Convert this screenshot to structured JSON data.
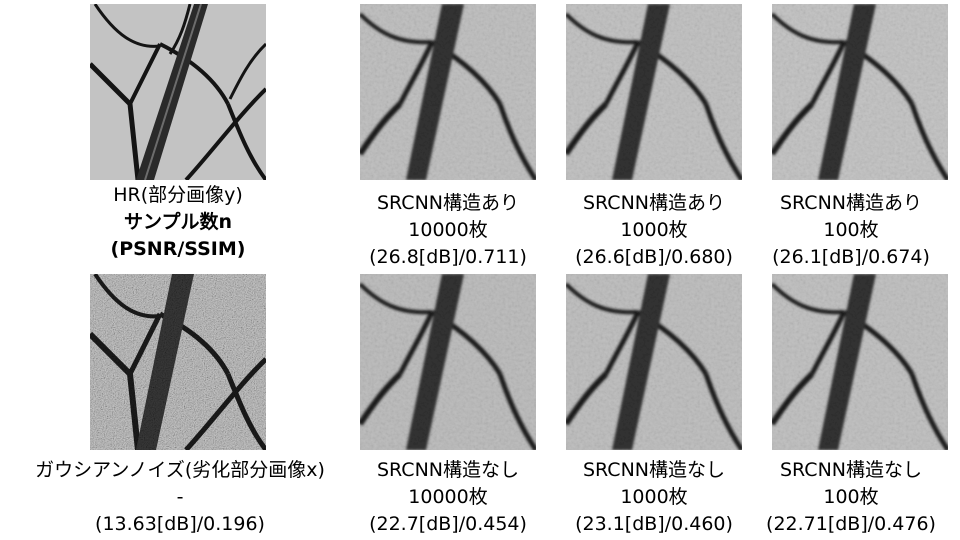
{
  "hr": {
    "caption": [
      "HR(部分画像y)",
      "サンプル数n",
      "(PSNR/SSIM)"
    ]
  },
  "noisy": {
    "caption": [
      "ガウシアンノイズ(劣化部分画像x)",
      "-",
      "(13.63[dB]/0.196)"
    ]
  },
  "top_row": [
    {
      "caption": [
        "SRCNN構造あり",
        "10000枚",
        "(26.8[dB]/0.711)"
      ]
    },
    {
      "caption": [
        "SRCNN構造あり",
        "1000枚",
        "(26.6[dB]/0.680)"
      ]
    },
    {
      "caption": [
        "SRCNN構造あり",
        "100枚",
        "(26.1[dB]/0.674)"
      ]
    }
  ],
  "bottom_row": [
    {
      "caption": [
        "SRCNN構造なし",
        "10000枚",
        "(22.7[dB]/0.454)"
      ]
    },
    {
      "caption": [
        "SRCNN構造なし",
        "1000枚",
        "(23.1[dB]/0.460)"
      ]
    },
    {
      "caption": [
        "SRCNN構造なし",
        "100枚",
        "(22.71[dB]/0.476)"
      ]
    }
  ]
}
